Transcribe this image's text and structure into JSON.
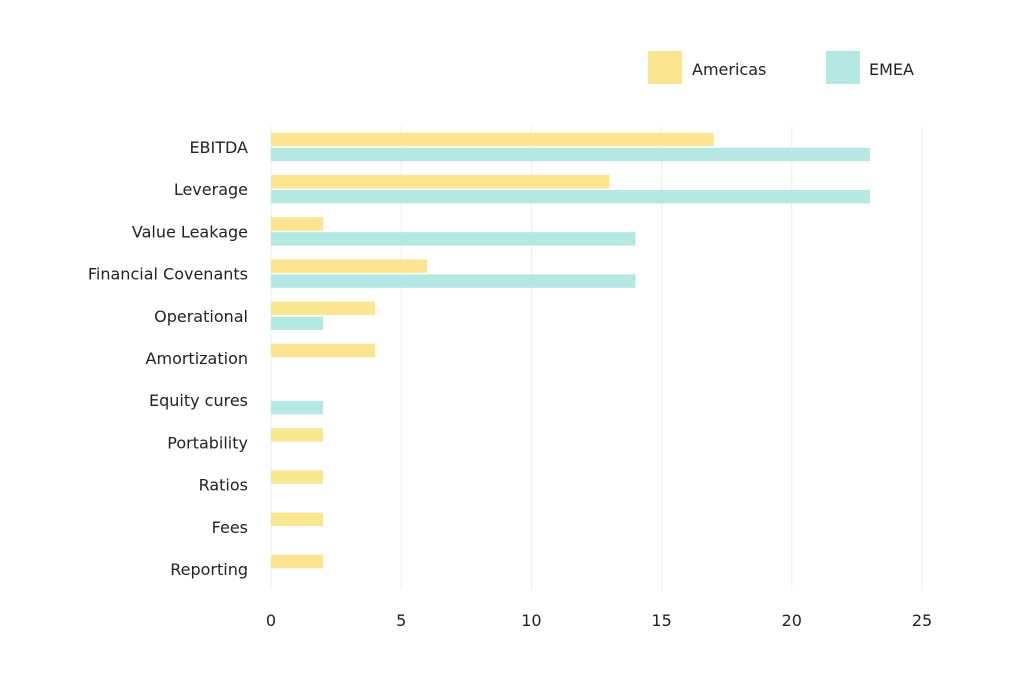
{
  "chart_data": {
    "type": "bar",
    "orientation": "horizontal",
    "categories": [
      "EBITDA",
      "Leverage",
      "Value Leakage",
      "Financial Covenants",
      "Operational",
      "Amortization",
      "Equity cures",
      "Portability",
      "Ratios",
      "Fees",
      "Reporting"
    ],
    "series": [
      {
        "name": "Americas",
        "color": "#fbe68f",
        "values": [
          17,
          13,
          2,
          6,
          4,
          4,
          0,
          2,
          2,
          2,
          2
        ]
      },
      {
        "name": "EMEA",
        "color": "#b3e8e4",
        "values": [
          23,
          23,
          14,
          14,
          2,
          0,
          2,
          0,
          0,
          0,
          0
        ]
      }
    ],
    "xlim": [
      0,
      25
    ],
    "xticks": [
      0,
      5,
      10,
      15,
      20,
      25
    ],
    "title": "",
    "xlabel": "",
    "ylabel": "",
    "grid": "vertical",
    "legend": "top-right"
  }
}
